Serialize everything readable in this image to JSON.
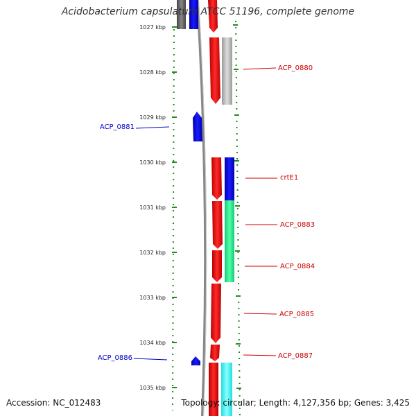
{
  "header": {
    "title": "Acidobacterium capsulatum ATCC 51196, complete genome"
  },
  "footer": {
    "accession": "Accession: NC_012483",
    "summary": "Topology: circular; Length: 4,127,356 bp; Genes: 3,425"
  },
  "ruler": {
    "labels": [
      "1027 kbp",
      "1028 kbp",
      "1029 kbp",
      "1030 kbp",
      "1031 kbp",
      "1032 kbp",
      "1033 kbp",
      "1034 kbp",
      "1035 kbp"
    ]
  },
  "gene_labels": {
    "forward": [
      {
        "name": "ACP_0880",
        "color": "#cc0000"
      },
      {
        "name": "crtE1",
        "color": "#cc0000"
      },
      {
        "name": "ACP_0883",
        "color": "#cc0000"
      },
      {
        "name": "ACP_0884",
        "color": "#cc0000"
      },
      {
        "name": "ACP_0885",
        "color": "#cc0000"
      },
      {
        "name": "ACP_0887",
        "color": "#cc0000"
      }
    ],
    "reverse": [
      {
        "name": "ACP_0881",
        "color": "#0000cc"
      },
      {
        "name": "ACP_0886",
        "color": "#0000cc"
      }
    ]
  },
  "colors": {
    "forward_cds": "#ff0000",
    "reverse_cds": "#0000ff",
    "rna_gray": "#bbbbbb",
    "green_feature": "#33ee99",
    "cyan_feature": "#33ffff",
    "backbone": "#888888",
    "tick_green": "#228b22"
  }
}
